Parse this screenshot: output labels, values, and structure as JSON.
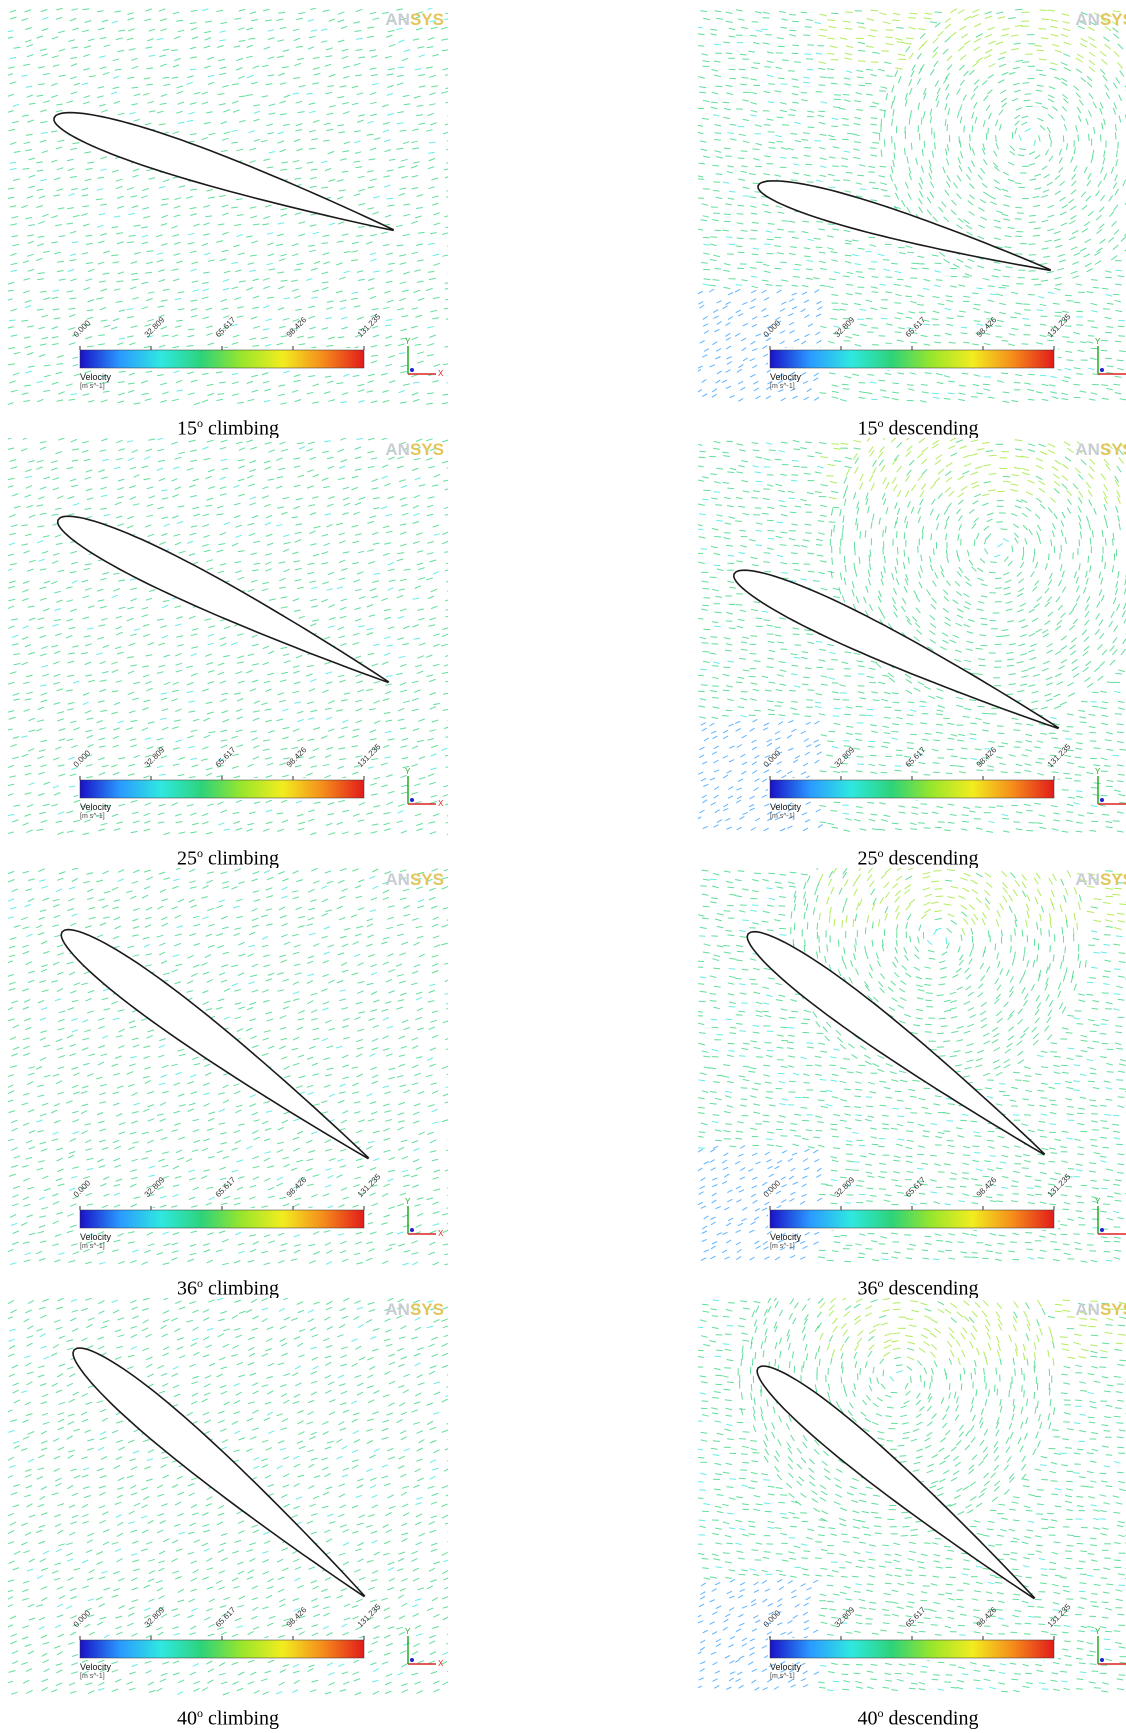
{
  "brand": {
    "logo_prefix": "AN",
    "logo_suffix": "SYS"
  },
  "legend": {
    "title": "Velocity",
    "unit": "[m s^-1]",
    "ticks": [
      "0.000",
      "32.809",
      "65.617",
      "98.426",
      "131.235"
    ],
    "colors": [
      "#1a10c8",
      "#2a9bff",
      "#2fe8e0",
      "#2dd37a",
      "#9ae62b",
      "#f2ec1f",
      "#f58b1b",
      "#e21b1b"
    ]
  },
  "axis_labels": {
    "x": "X",
    "y": "Y"
  },
  "panels": [
    {
      "id": "p15c",
      "angle": 15,
      "mode": "climbing",
      "caption_num": "15",
      "caption_text": " climbing",
      "vortex": false
    },
    {
      "id": "p15d",
      "angle": 15,
      "mode": "descending",
      "caption_num": "15",
      "caption_text": " descending",
      "vortex": true
    },
    {
      "id": "p25c",
      "angle": 25,
      "mode": "climbing",
      "caption_num": "25",
      "caption_text": " climbing",
      "vortex": false
    },
    {
      "id": "p25d",
      "angle": 25,
      "mode": "descending",
      "caption_num": "25",
      "caption_text": " descending",
      "vortex": true
    },
    {
      "id": "p36c",
      "angle": 36,
      "mode": "climbing",
      "caption_num": "36",
      "caption_text": " climbing",
      "vortex": false
    },
    {
      "id": "p36d",
      "angle": 36,
      "mode": "descending",
      "caption_num": "36",
      "caption_text": " descending",
      "vortex": true
    },
    {
      "id": "p40c",
      "angle": 40,
      "mode": "climbing",
      "caption_num": "40",
      "caption_text": " climbing",
      "vortex": false
    },
    {
      "id": "p40d",
      "angle": 40,
      "mode": "descending",
      "caption_num": "40",
      "caption_text": " descending",
      "vortex": true
    }
  ],
  "caption_degree_symbol": "o"
}
